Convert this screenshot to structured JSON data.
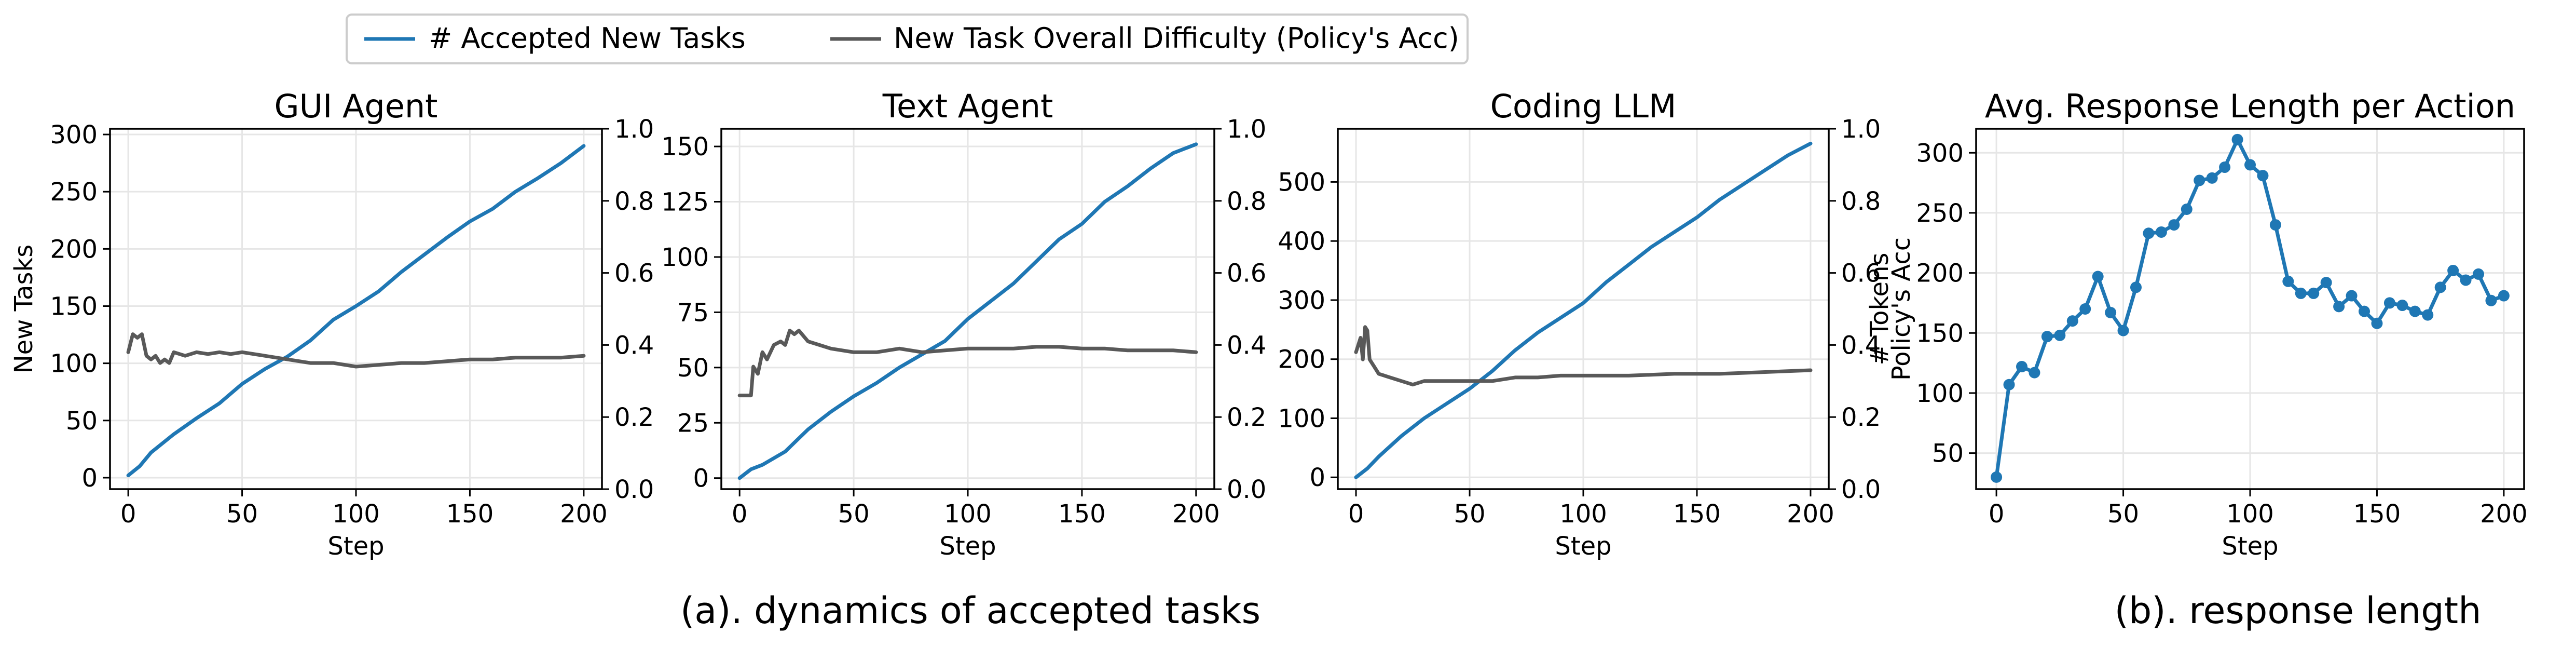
{
  "legend": {
    "placement": "top-left, above panels",
    "entries": [
      {
        "label": "# Accepted New Tasks",
        "color": "#1f77b4"
      },
      {
        "label": "New Task Overall Difficulty (Policy's Acc)",
        "color": "#595959"
      }
    ]
  },
  "captions": {
    "a": "(a). dynamics of accepted tasks",
    "b": "(b). response length"
  },
  "colors": {
    "tasks": "#1f77b4",
    "acc": "#595959",
    "grid": "#e6e6e6"
  },
  "chart_data": [
    {
      "type": "line",
      "title": "GUI Agent",
      "xlabel": "Step",
      "ylabel": "New Tasks",
      "y2label": "",
      "xlim": [
        -8,
        208
      ],
      "ylim": [
        -10,
        305
      ],
      "y2lim": [
        0,
        1
      ],
      "xticks": [
        0,
        50,
        100,
        150,
        200
      ],
      "yticks": [
        0,
        50,
        100,
        150,
        200,
        250,
        300
      ],
      "y2ticks": [
        0.0,
        0.2,
        0.4,
        0.6,
        0.8,
        1.0
      ],
      "grid": true,
      "series": [
        {
          "name": "# Accepted New Tasks",
          "axis": "left",
          "x": [
            0,
            5,
            10,
            20,
            30,
            40,
            50,
            60,
            70,
            80,
            90,
            100,
            110,
            120,
            130,
            140,
            150,
            160,
            170,
            180,
            190,
            200
          ],
          "y": [
            2,
            10,
            22,
            38,
            52,
            65,
            82,
            95,
            106,
            120,
            138,
            150,
            163,
            180,
            195,
            210,
            224,
            235,
            250,
            262,
            275,
            290
          ]
        },
        {
          "name": "New Task Overall Difficulty (Policy's Acc)",
          "axis": "right",
          "x": [
            0,
            2,
            4,
            6,
            8,
            10,
            12,
            14,
            16,
            18,
            20,
            25,
            30,
            35,
            40,
            45,
            50,
            60,
            70,
            80,
            90,
            100,
            110,
            120,
            130,
            140,
            150,
            160,
            170,
            180,
            190,
            200
          ],
          "y": [
            0.38,
            0.43,
            0.42,
            0.43,
            0.37,
            0.36,
            0.37,
            0.35,
            0.36,
            0.35,
            0.38,
            0.37,
            0.38,
            0.375,
            0.38,
            0.375,
            0.38,
            0.37,
            0.36,
            0.35,
            0.35,
            0.34,
            0.345,
            0.35,
            0.35,
            0.355,
            0.36,
            0.36,
            0.365,
            0.365,
            0.365,
            0.37
          ]
        }
      ]
    },
    {
      "type": "line",
      "title": "Text Agent",
      "xlabel": "Step",
      "ylabel": "",
      "y2label": "",
      "xlim": [
        -8,
        208
      ],
      "ylim": [
        -5,
        158
      ],
      "y2lim": [
        0,
        1
      ],
      "xticks": [
        0,
        50,
        100,
        150,
        200
      ],
      "yticks": [
        0,
        25,
        50,
        75,
        100,
        125,
        150
      ],
      "y2ticks": [
        0.0,
        0.2,
        0.4,
        0.6,
        0.8,
        1.0
      ],
      "grid": true,
      "series": [
        {
          "name": "# Accepted New Tasks",
          "axis": "left",
          "x": [
            0,
            5,
            10,
            20,
            30,
            40,
            50,
            60,
            70,
            80,
            90,
            100,
            110,
            120,
            130,
            140,
            150,
            160,
            170,
            180,
            190,
            200
          ],
          "y": [
            0,
            4,
            6,
            12,
            22,
            30,
            37,
            43,
            50,
            56,
            62,
            72,
            80,
            88,
            98,
            108,
            115,
            125,
            132,
            140,
            147,
            151
          ]
        },
        {
          "name": "New Task Overall Difficulty (Policy's Acc)",
          "axis": "right",
          "x": [
            0,
            5,
            6,
            8,
            10,
            12,
            15,
            18,
            20,
            22,
            24,
            26,
            30,
            35,
            40,
            50,
            60,
            70,
            80,
            90,
            100,
            110,
            120,
            130,
            140,
            150,
            160,
            170,
            180,
            190,
            200
          ],
          "y": [
            0.26,
            0.26,
            0.34,
            0.32,
            0.38,
            0.36,
            0.4,
            0.41,
            0.4,
            0.44,
            0.43,
            0.44,
            0.41,
            0.4,
            0.39,
            0.38,
            0.38,
            0.39,
            0.38,
            0.385,
            0.39,
            0.39,
            0.39,
            0.395,
            0.395,
            0.39,
            0.39,
            0.385,
            0.385,
            0.385,
            0.38
          ]
        }
      ]
    },
    {
      "type": "line",
      "title": "Coding LLM",
      "xlabel": "Step",
      "ylabel": "",
      "y2label": "Policy's Acc",
      "xlim": [
        -8,
        208
      ],
      "ylim": [
        -20,
        590
      ],
      "y2lim": [
        0,
        1
      ],
      "xticks": [
        0,
        50,
        100,
        150,
        200
      ],
      "yticks": [
        0,
        100,
        200,
        300,
        400,
        500
      ],
      "y2ticks": [
        0.0,
        0.2,
        0.4,
        0.6,
        0.8,
        1.0
      ],
      "grid": true,
      "series": [
        {
          "name": "# Accepted New Tasks",
          "axis": "left",
          "x": [
            0,
            5,
            10,
            20,
            30,
            40,
            50,
            60,
            70,
            80,
            90,
            100,
            110,
            120,
            130,
            140,
            150,
            160,
            170,
            180,
            190,
            200
          ],
          "y": [
            0,
            15,
            35,
            70,
            100,
            125,
            150,
            180,
            215,
            245,
            270,
            295,
            330,
            360,
            390,
            415,
            440,
            470,
            495,
            520,
            545,
            565
          ]
        },
        {
          "name": "New Task Overall Difficulty (Policy's Acc)",
          "axis": "right",
          "x": [
            0,
            2,
            3,
            4,
            5,
            6,
            7,
            8,
            10,
            15,
            20,
            25,
            30,
            40,
            50,
            60,
            70,
            80,
            90,
            100,
            120,
            140,
            160,
            180,
            200
          ],
          "y": [
            0.38,
            0.42,
            0.36,
            0.45,
            0.44,
            0.36,
            0.35,
            0.34,
            0.32,
            0.31,
            0.3,
            0.29,
            0.3,
            0.3,
            0.3,
            0.3,
            0.31,
            0.31,
            0.315,
            0.315,
            0.315,
            0.32,
            0.32,
            0.325,
            0.33
          ]
        }
      ]
    },
    {
      "type": "line",
      "title": "Avg. Response Length per Action",
      "xlabel": "Step",
      "ylabel": "# Tokens",
      "xlim": [
        -8,
        208
      ],
      "ylim": [
        20,
        320
      ],
      "xticks": [
        0,
        50,
        100,
        150,
        200
      ],
      "yticks": [
        50,
        100,
        150,
        200,
        250,
        300
      ],
      "grid": true,
      "markers": true,
      "series": [
        {
          "name": "",
          "x": [
            0,
            5,
            10,
            15,
            20,
            25,
            30,
            35,
            40,
            45,
            50,
            55,
            60,
            65,
            70,
            75,
            80,
            85,
            90,
            95,
            100,
            105,
            110,
            115,
            120,
            125,
            130,
            135,
            140,
            145,
            150,
            155,
            160,
            165,
            170,
            175,
            180,
            185,
            190,
            195,
            200
          ],
          "y": [
            30,
            107,
            122,
            117,
            147,
            148,
            160,
            170,
            197,
            167,
            152,
            188,
            233,
            234,
            240,
            253,
            277,
            279,
            288,
            311,
            290,
            281,
            240,
            193,
            183,
            183,
            192,
            172,
            181,
            168,
            158,
            175,
            173,
            168,
            165,
            188,
            202,
            194,
            199,
            177,
            181
          ]
        }
      ]
    }
  ]
}
